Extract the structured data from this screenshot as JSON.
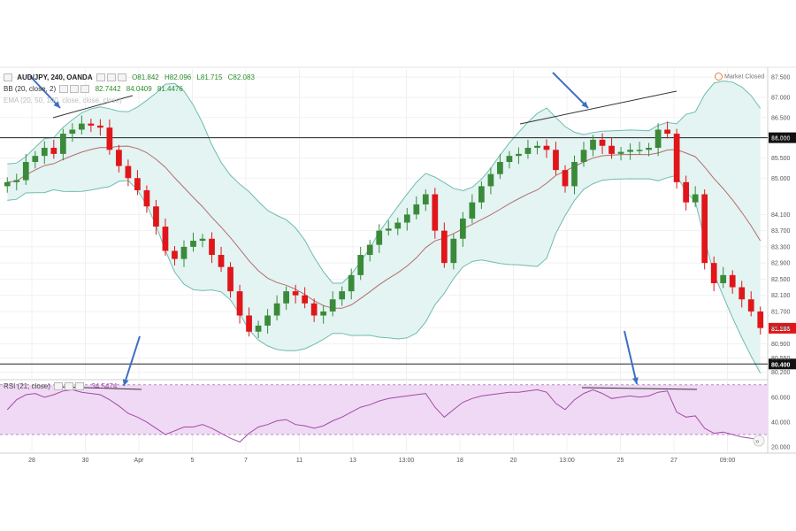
{
  "header": {
    "symbol": "AUD/JPY, 240, OANDA",
    "o": "O81.842",
    "h": "H82.096",
    "l": "L81.715",
    "c": "C82.083",
    "bb_label": "BB (20, close, 2)",
    "bb_v1": "82.7442",
    "bb_v2": "84.0409",
    "bb_v3": "81.4476",
    "ema_label": "EMA (20, 50, 100, close, close, close)"
  },
  "market_status": "Market Closed",
  "rsi": {
    "label": "RSI (21, close)",
    "value": "34.5474"
  },
  "colors": {
    "bull": "#3a8a3a",
    "bear": "#e0161a",
    "band_fill": "#e3f4f2",
    "band_line": "#6fbcb0",
    "basis": "#b56c6c",
    "rsi_line": "#a24aa8",
    "rsi_fill": "#f0d9f4",
    "arrow": "#3d6fc2"
  },
  "chart_data": {
    "type": "candlestick",
    "price_axis": {
      "ticks": [
        "87.500",
        "87.000",
        "86.500",
        "86.000",
        "85.500",
        "85.000",
        "84.100",
        "83.700",
        "83.300",
        "82.900",
        "82.500",
        "82.100",
        "81.700",
        "81.300",
        "80.900",
        "80.550",
        "80.200"
      ],
      "range": [
        80.1,
        87.7
      ]
    },
    "x_labels": [
      "28",
      "30",
      "Apr",
      "5",
      "7",
      "11",
      "13",
      "13:00",
      "18",
      "20",
      "13:00",
      "25",
      "27",
      "09:00"
    ],
    "horizontal_levels": [
      {
        "value": 86.0,
        "label": "86.000"
      },
      {
        "value": 80.4,
        "label": "80.400"
      }
    ],
    "last_price": {
      "value": 81.285,
      "label": "81.285"
    },
    "rsi_axis": {
      "ticks": [
        "60.000",
        "40.000",
        "20.000"
      ],
      "range": [
        20,
        72
      ]
    },
    "price_series": [
      84.9,
      84.95,
      85.4,
      85.55,
      85.75,
      85.6,
      86.1,
      86.2,
      86.35,
      86.3,
      86.25,
      85.7,
      85.3,
      85.0,
      84.7,
      84.3,
      83.8,
      83.2,
      83.0,
      83.3,
      83.45,
      83.5,
      83.1,
      82.8,
      82.2,
      81.6,
      81.2,
      81.35,
      81.6,
      81.9,
      82.2,
      82.1,
      81.9,
      81.6,
      81.7,
      82.0,
      82.2,
      82.6,
      83.1,
      83.35,
      83.7,
      83.75,
      83.9,
      84.1,
      84.35,
      84.6,
      83.7,
      82.9,
      83.5,
      84.0,
      84.4,
      84.8,
      85.1,
      85.4,
      85.55,
      85.6,
      85.75,
      85.8,
      85.7,
      85.2,
      84.8,
      85.4,
      85.7,
      85.95,
      85.8,
      85.6,
      85.65,
      85.7,
      85.7,
      85.75,
      86.2,
      86.1,
      84.9,
      84.4,
      84.6,
      82.9,
      82.4,
      82.6,
      82.3,
      82.0,
      81.7,
      81.29
    ],
    "rsi_series": [
      50,
      58,
      62,
      63,
      60,
      62,
      65,
      66,
      64,
      63,
      62,
      58,
      53,
      47,
      44,
      40,
      35,
      30,
      33,
      36,
      36,
      38,
      35,
      31,
      27,
      24,
      31,
      36,
      38,
      41,
      42,
      38,
      37,
      35,
      37,
      41,
      44,
      48,
      52,
      54,
      57,
      59,
      60,
      61,
      62,
      63,
      52,
      44,
      50,
      56,
      59,
      61,
      62,
      63,
      64,
      64,
      65,
      66,
      64,
      55,
      50,
      58,
      63,
      66,
      63,
      59,
      60,
      61,
      60,
      61,
      64,
      65,
      48,
      44,
      45,
      35,
      31,
      32,
      30,
      28,
      27,
      25
    ]
  }
}
